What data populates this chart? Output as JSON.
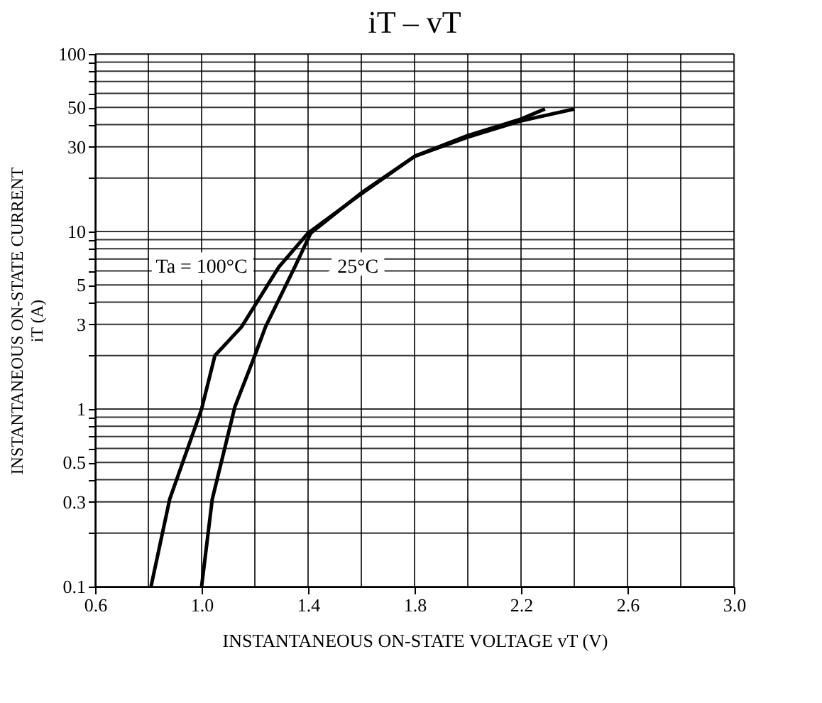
{
  "chart_data": {
    "type": "line",
    "title": "iT – vT",
    "xlabel": "INSTANTANEOUS ON-STATE VOLTAGE  vT  (V)",
    "ylabel": [
      "INSTANTANEOUS ON-STATE CURRENT",
      "iT  (A)"
    ],
    "series": [
      {
        "name": "Ta = 100°C",
        "color": "#000000",
        "x": [
          0.81,
          0.88,
          1.0,
          1.05,
          1.15,
          1.29,
          1.4,
          1.6,
          1.8,
          2.0,
          2.2,
          2.29
        ],
        "values": [
          0.1,
          0.31,
          1.0,
          2.0,
          2.9,
          6.3,
          9.8,
          16.3,
          26.5,
          34.7,
          43,
          49
        ]
      },
      {
        "name": "25°C",
        "color": "#000000",
        "x": [
          1.0,
          1.04,
          1.125,
          1.2,
          1.24,
          1.35,
          1.41,
          1.6,
          1.8,
          2.0,
          2.2,
          2.4
        ],
        "values": [
          0.1,
          0.31,
          1.03,
          2.0,
          2.9,
          6.3,
          9.8,
          16.5,
          26.5,
          34,
          42,
          49
        ]
      }
    ],
    "xlim": [
      0.6,
      3.0
    ],
    "xticks": [
      0.6,
      {
        "value": 0.8,
        "label": null
      },
      {
        "value": 1.0,
        "label": "1.0"
      },
      {
        "value": 1.2,
        "label": null
      },
      1.4,
      {
        "value": 1.6,
        "label": null
      },
      1.8,
      {
        "value": 2.0,
        "label": null
      },
      2.2,
      {
        "value": 2.4,
        "label": null
      },
      2.6,
      {
        "value": 2.8,
        "label": null
      },
      {
        "value": 3.0,
        "label": "3.0"
      }
    ],
    "ylim": [
      0.1,
      100
    ],
    "log": "y",
    "yticks": [
      0.1,
      {
        "value": 0.2,
        "label": null
      },
      0.3,
      {
        "value": 0.4,
        "label": null
      },
      0.5,
      {
        "value": 0.6,
        "label": null
      },
      {
        "value": 0.7,
        "label": null
      },
      {
        "value": 0.8,
        "label": null
      },
      {
        "value": 0.9,
        "label": null
      },
      1,
      {
        "value": 2,
        "label": null
      },
      3,
      {
        "value": 4,
        "label": null
      },
      5,
      {
        "value": 6,
        "label": null
      },
      {
        "value": 7,
        "label": null
      },
      {
        "value": 8,
        "label": null
      },
      {
        "value": 9,
        "label": null
      },
      10,
      {
        "value": 20,
        "label": null
      },
      30,
      {
        "value": 40,
        "label": null
      },
      50,
      {
        "value": 60,
        "label": null
      },
      {
        "value": 70,
        "label": null
      },
      {
        "value": 80,
        "label": null
      },
      {
        "value": 90,
        "label": null
      },
      100
    ],
    "grid": true,
    "legend": false,
    "line_style": "solid",
    "marker": "none"
  }
}
